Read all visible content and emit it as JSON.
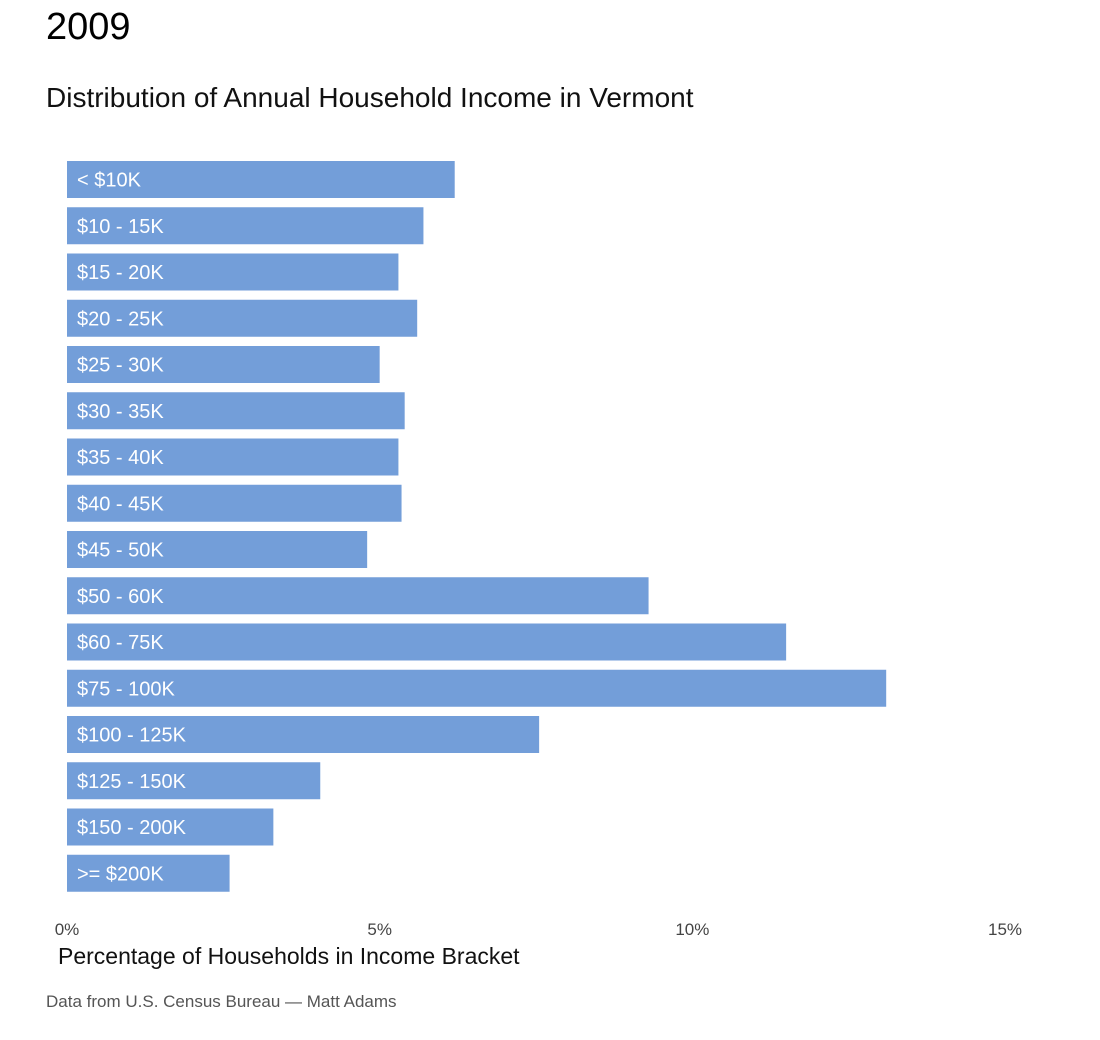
{
  "chart_data": {
    "type": "bar",
    "orientation": "horizontal",
    "title": "2009",
    "subtitle": "Distribution of Annual Household Income in Vermont",
    "xlabel": "Percentage of Households in Income Bracket",
    "ylabel": "",
    "caption": "Data from U.S. Census Bureau — Matt Adams",
    "xlim": [
      0,
      15
    ],
    "x_ticks": [
      0,
      5,
      10,
      15
    ],
    "x_tick_labels": [
      "0%",
      "5%",
      "10%",
      "15%"
    ],
    "categories": [
      "< $10K",
      "$10 - 15K",
      "$15 - 20K",
      "$20 - 25K",
      "$25 - 30K",
      "$30 - 35K",
      "$35 - 40K",
      "$40 - 45K",
      "$45 - 50K",
      "$50 - 60K",
      "$60 - 75K",
      "$75 - 100K",
      "$100 - 125K",
      "$125 - 150K",
      "$150 - 200K",
      ">= $200K"
    ],
    "values": [
      6.2,
      5.7,
      5.3,
      5.6,
      5.0,
      5.4,
      5.3,
      5.35,
      4.8,
      9.3,
      11.5,
      13.1,
      7.55,
      4.05,
      3.3,
      2.6
    ],
    "bar_color": "#739ed9",
    "grid": false,
    "legend": "none"
  }
}
